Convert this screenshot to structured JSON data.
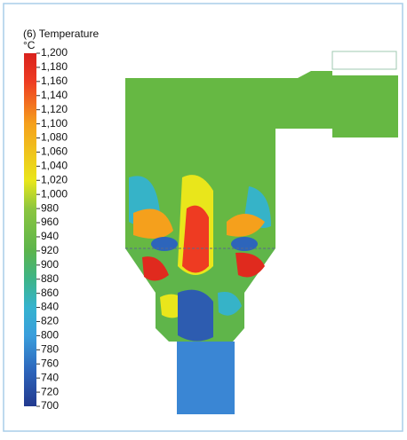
{
  "colorbar": {
    "title": "(6) Temperature",
    "unit": "°C",
    "lim": [
      700,
      1200
    ],
    "ticks": [
      {
        "value": 1200,
        "label": "1,200"
      },
      {
        "value": 1180,
        "label": "1,180"
      },
      {
        "value": 1160,
        "label": "1,160"
      },
      {
        "value": 1140,
        "label": "1,140"
      },
      {
        "value": 1120,
        "label": "1,120"
      },
      {
        "value": 1100,
        "label": "1,100"
      },
      {
        "value": 1080,
        "label": "1,080"
      },
      {
        "value": 1060,
        "label": "1,060"
      },
      {
        "value": 1040,
        "label": "1,040"
      },
      {
        "value": 1020,
        "label": "1,020"
      },
      {
        "value": 1000,
        "label": "1,000"
      },
      980,
      960,
      940,
      920,
      900,
      880,
      860,
      840,
      820,
      800,
      780,
      760,
      740,
      720,
      700
    ]
  }
}
